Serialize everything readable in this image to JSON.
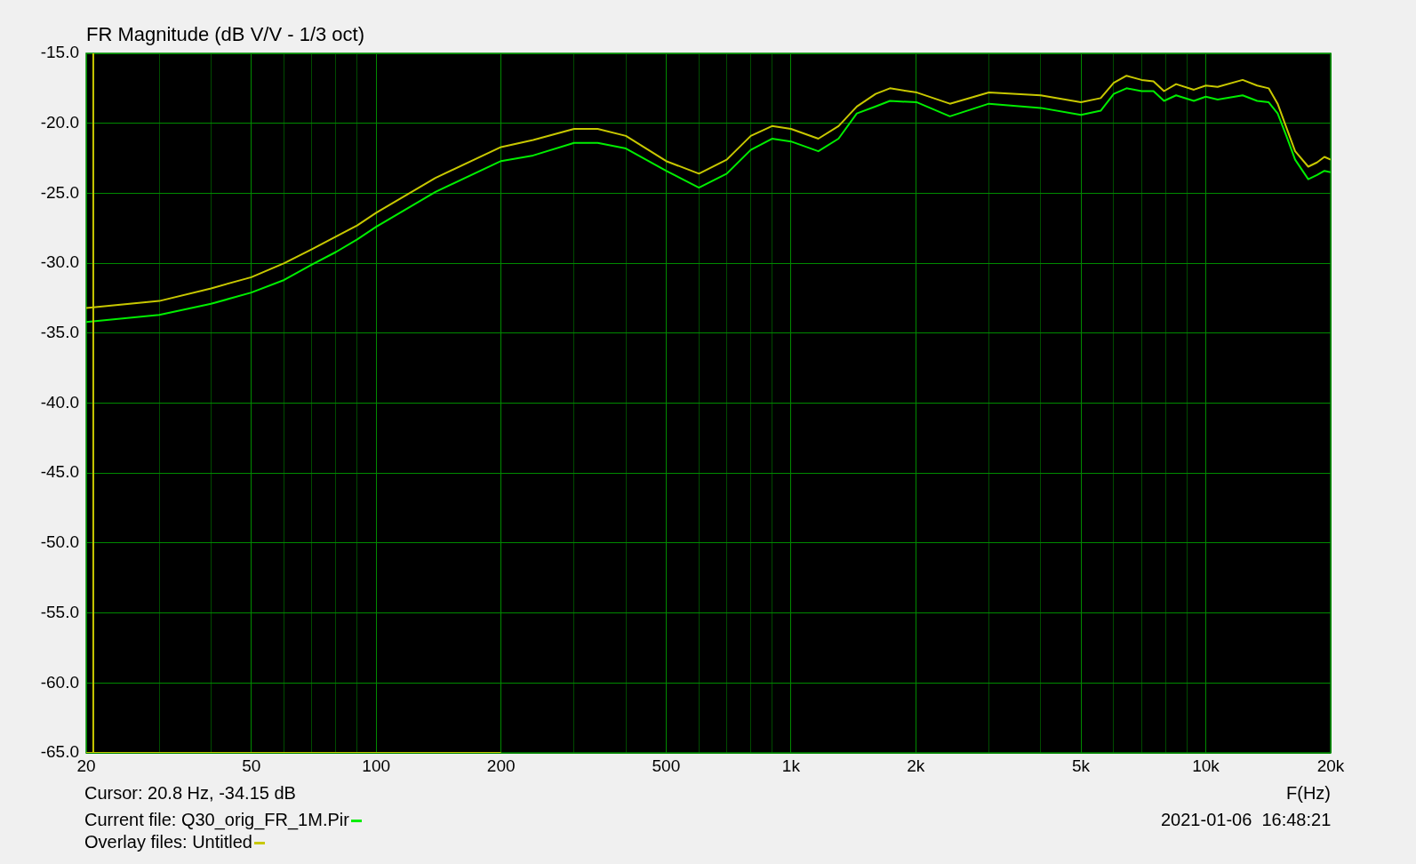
{
  "chart_data": {
    "type": "line",
    "title": "FR Magnitude (dB V/V - 1/3 oct)",
    "xlabel": "F(Hz)",
    "log": "x",
    "grid": true,
    "legend": "bottom left",
    "marker": "none",
    "line_style": "solid",
    "xlim": [
      20,
      20000
    ],
    "ylim": [
      -65,
      -15
    ],
    "xticks": [
      20,
      {
        "value": 30,
        "label": null
      },
      {
        "value": 40,
        "label": null
      },
      50,
      {
        "value": 60,
        "label": null
      },
      {
        "value": 70,
        "label": null
      },
      {
        "value": 80,
        "label": null
      },
      {
        "value": 90,
        "label": null
      },
      100,
      200,
      {
        "value": 300,
        "label": null
      },
      {
        "value": 400,
        "label": null
      },
      500,
      {
        "value": 600,
        "label": null
      },
      {
        "value": 700,
        "label": null
      },
      {
        "value": 800,
        "label": null
      },
      {
        "value": 900,
        "label": null
      },
      {
        "value": 1000,
        "label": "1k"
      },
      {
        "value": 2000,
        "label": "2k"
      },
      {
        "value": 3000,
        "label": null
      },
      {
        "value": 4000,
        "label": null
      },
      {
        "value": 5000,
        "label": "5k"
      },
      {
        "value": 6000,
        "label": null
      },
      {
        "value": 7000,
        "label": null
      },
      {
        "value": 8000,
        "label": null
      },
      {
        "value": 9000,
        "label": null
      },
      {
        "value": 10000,
        "label": "10k"
      },
      {
        "value": 20000,
        "label": "20k"
      }
    ],
    "yticks": [
      {
        "value": -15,
        "label": "-15.0"
      },
      {
        "value": -20,
        "label": "-20.0"
      },
      {
        "value": -25,
        "label": "-25.0"
      },
      {
        "value": -30,
        "label": "-30.0"
      },
      {
        "value": -35,
        "label": "-35.0"
      },
      {
        "value": -40,
        "label": "-40.0"
      },
      {
        "value": -45,
        "label": "-45.0"
      },
      {
        "value": -50,
        "label": "-50.0"
      },
      {
        "value": -55,
        "label": "-55.0"
      },
      {
        "value": -60,
        "label": "-60.0"
      },
      {
        "value": -65,
        "label": "-65.0"
      }
    ],
    "series": [
      {
        "name": "Current file: Q30_orig_FR_1M.Pir",
        "color": "#00ee00",
        "x": [
          20,
          30,
          40,
          50,
          60,
          70,
          80,
          90,
          100,
          139,
          200,
          239,
          300,
          342,
          400,
          500,
          600,
          700,
          800,
          900,
          1000,
          1164,
          1302,
          1441,
          1600,
          1732,
          2012,
          2416,
          3000,
          4000,
          5000,
          5580,
          6000,
          6440,
          7000,
          7480,
          7930,
          8480,
          9360,
          10000,
          10680,
          12270,
          13300,
          14180,
          14900,
          15640,
          16420,
          17660,
          18540,
          19320,
          20000
        ],
        "values": [
          -34.2,
          -33.7,
          -32.9,
          -32.1,
          -31.2,
          -30.1,
          -29.2,
          -28.3,
          -27.4,
          -24.9,
          -22.7,
          -22.3,
          -21.4,
          -21.4,
          -21.8,
          -23.4,
          -24.6,
          -23.6,
          -21.9,
          -21.1,
          -21.3,
          -22.0,
          -21.1,
          -19.3,
          -18.8,
          -18.4,
          -18.5,
          -19.5,
          -18.6,
          -18.9,
          -19.4,
          -19.1,
          -17.9,
          -17.5,
          -17.7,
          -17.7,
          -18.4,
          -18.0,
          -18.4,
          -18.1,
          -18.3,
          -18.0,
          -18.4,
          -18.5,
          -19.3,
          -20.9,
          -22.6,
          -24.0,
          -23.7,
          -23.4,
          -23.5
        ]
      },
      {
        "name": "Overlay files: Untitled",
        "color": "#c8c800",
        "x": [
          20,
          30,
          40,
          50,
          60,
          70,
          80,
          90,
          100,
          139,
          200,
          239,
          300,
          342,
          400,
          500,
          600,
          700,
          800,
          900,
          1000,
          1164,
          1302,
          1441,
          1600,
          1732,
          2012,
          2416,
          3000,
          4000,
          5000,
          5580,
          6000,
          6440,
          7000,
          7480,
          7930,
          8480,
          9360,
          10000,
          10680,
          12270,
          13300,
          14180,
          14900,
          15640,
          16420,
          17660,
          18540,
          19320,
          20000
        ],
        "values": [
          -33.2,
          -32.7,
          -31.8,
          -31.0,
          -30.0,
          -29.0,
          -28.1,
          -27.3,
          -26.4,
          -23.9,
          -21.7,
          -21.2,
          -20.4,
          -20.4,
          -20.9,
          -22.7,
          -23.6,
          -22.6,
          -20.9,
          -20.2,
          -20.4,
          -21.1,
          -20.2,
          -18.8,
          -17.9,
          -17.5,
          -17.8,
          -18.6,
          -17.8,
          -18.0,
          -18.5,
          -18.2,
          -17.1,
          -16.6,
          -16.9,
          -17.0,
          -17.7,
          -17.2,
          -17.6,
          -17.3,
          -17.4,
          -16.9,
          -17.3,
          -17.5,
          -18.6,
          -20.3,
          -22.0,
          -23.1,
          -22.8,
          -22.4,
          -22.6
        ]
      },
      {
        "color": "#c8c800",
        "x": [
          20,
          200
        ],
        "values": [
          -65,
          -65
        ]
      }
    ],
    "ref_lines": [
      {
        "axis": "x",
        "value": 20.8,
        "color": "#c8c800"
      }
    ],
    "annotations": [
      "Cursor: 20.8 Hz, -34.15 dB",
      "2021-01-06  16:48:21"
    ]
  }
}
